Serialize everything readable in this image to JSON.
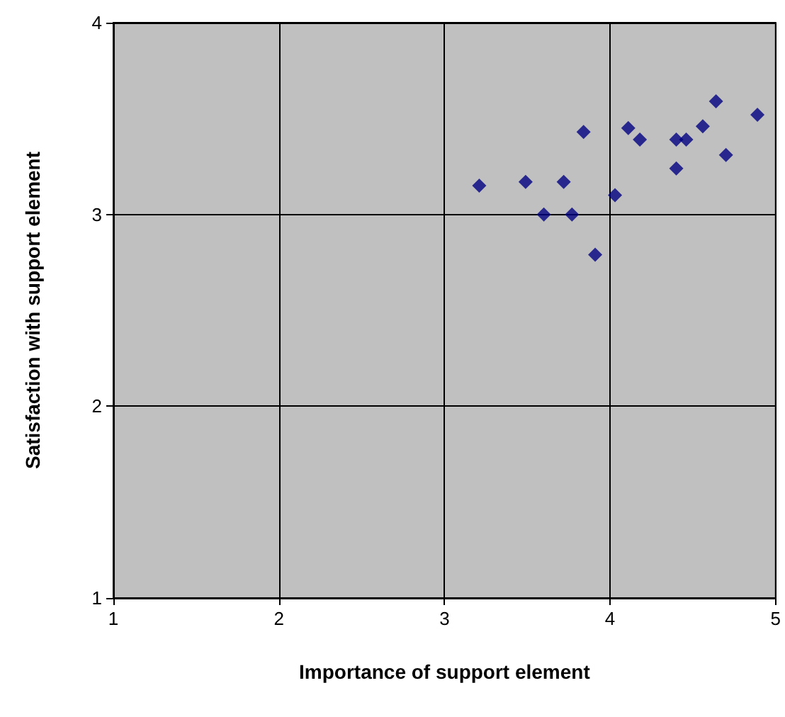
{
  "chart_data": {
    "type": "scatter",
    "xlabel": "Importance of support element",
    "ylabel": "Satisfaction with support element",
    "x": [
      3.21,
      3.49,
      3.72,
      3.6,
      3.77,
      3.84,
      3.91,
      4.03,
      4.11,
      4.18,
      4.4,
      4.46,
      4.4,
      4.56,
      4.64,
      4.7,
      4.89
    ],
    "values": [
      3.15,
      3.17,
      3.17,
      3.0,
      3.0,
      3.43,
      2.79,
      3.1,
      3.45,
      3.39,
      3.39,
      3.39,
      3.24,
      3.46,
      3.59,
      3.31,
      3.52
    ],
    "color": "#000080",
    "marker": "diamond",
    "xlim": [
      1,
      5
    ],
    "ylim": [
      1,
      4
    ],
    "xticks": [
      1,
      2,
      3,
      4,
      5
    ],
    "yticks": [
      1,
      2,
      3,
      4
    ],
    "grid": true
  }
}
